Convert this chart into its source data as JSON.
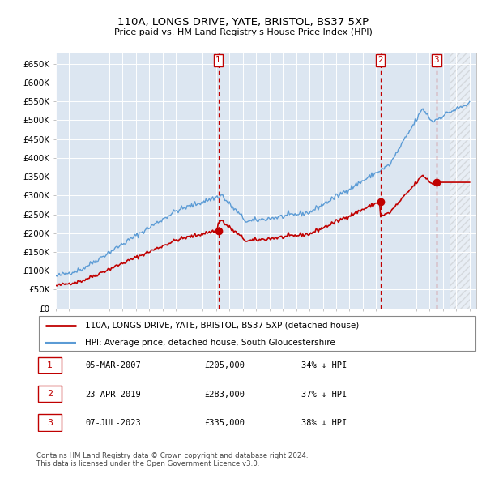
{
  "title1": "110A, LONGS DRIVE, YATE, BRISTOL, BS37 5XP",
  "title2": "Price paid vs. HM Land Registry's House Price Index (HPI)",
  "ylim": [
    0,
    680000
  ],
  "yticks": [
    0,
    50000,
    100000,
    150000,
    200000,
    250000,
    300000,
    350000,
    400000,
    450000,
    500000,
    550000,
    600000,
    650000
  ],
  "ytick_labels": [
    "£0",
    "£50K",
    "£100K",
    "£150K",
    "£200K",
    "£250K",
    "£300K",
    "£350K",
    "£400K",
    "£450K",
    "£500K",
    "£550K",
    "£600K",
    "£650K"
  ],
  "sale_year_nums": [
    2007.17,
    2019.31,
    2023.52
  ],
  "sale_prices": [
    205000,
    283000,
    335000
  ],
  "sale_labels": [
    "1",
    "2",
    "3"
  ],
  "legend_line1": "110A, LONGS DRIVE, YATE, BRISTOL, BS37 5XP (detached house)",
  "legend_line2": "HPI: Average price, detached house, South Gloucestershire",
  "table_rows": [
    [
      "1",
      "05-MAR-2007",
      "£205,000",
      "34% ↓ HPI"
    ],
    [
      "2",
      "23-APR-2019",
      "£283,000",
      "37% ↓ HPI"
    ],
    [
      "3",
      "07-JUL-2023",
      "£335,000",
      "38% ↓ HPI"
    ]
  ],
  "footer": "Contains HM Land Registry data © Crown copyright and database right 2024.\nThis data is licensed under the Open Government Licence v3.0.",
  "hpi_color": "#5b9bd5",
  "sale_color": "#c00000",
  "vline_color": "#c00000",
  "bg_color": "#dce6f1",
  "grid_color": "#ffffff"
}
